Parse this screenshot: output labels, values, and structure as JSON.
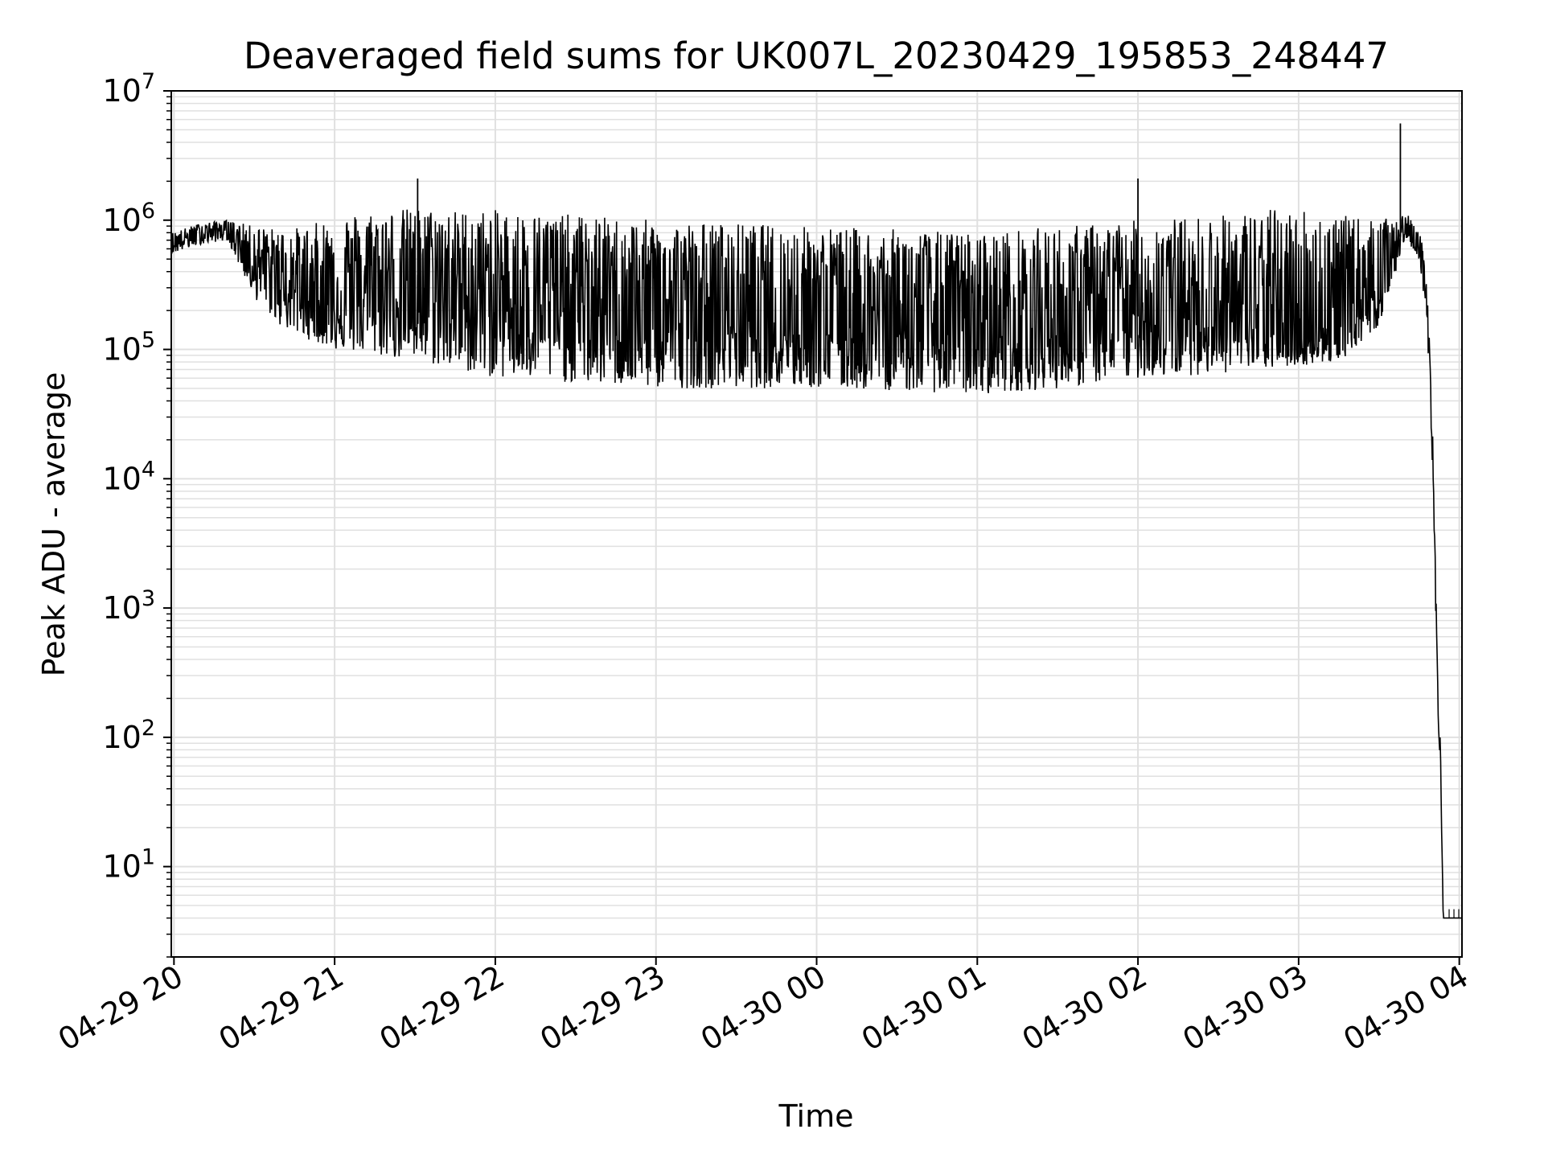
{
  "chart_data": {
    "type": "line",
    "title": "Deaveraged field sums for UK007L_20230429_195853_248447",
    "xlabel": "Time",
    "ylabel": "Peak ADU - average",
    "yscale": "log",
    "ylim": [
      2,
      10000000
    ],
    "xlim": [
      "2023-04-29 19:59",
      "2023-04-30 04:01"
    ],
    "x_ticks": [
      "04-29 20",
      "04-29 21",
      "04-29 22",
      "04-29 23",
      "04-30 00",
      "04-30 01",
      "04-30 02",
      "04-30 03",
      "04-30 04"
    ],
    "y_ticks": [
      {
        "base": "10",
        "exp": "1",
        "value": 10
      },
      {
        "base": "10",
        "exp": "2",
        "value": 100
      },
      {
        "base": "10",
        "exp": "3",
        "value": 1000
      },
      {
        "base": "10",
        "exp": "4",
        "value": 10000
      },
      {
        "base": "10",
        "exp": "5",
        "value": 100000
      },
      {
        "base": "10",
        "exp": "6",
        "value": 1000000
      },
      {
        "base": "10",
        "exp": "7",
        "value": 10000000
      }
    ],
    "grid": true,
    "line_color": "#000000",
    "grid_color": "#e0e0e0",
    "series": [
      {
        "x": [
          "2023-04-29 19:59",
          "2023-04-29 20:10",
          "2023-04-29 20:20",
          "2023-04-29 20:30",
          "2023-04-29 20:40",
          "2023-04-29 20:50",
          "2023-04-29 21:00",
          "2023-04-29 21:15",
          "2023-04-29 21:30",
          "2023-04-29 21:45",
          "2023-04-29 22:00",
          "2023-04-29 22:30",
          "2023-04-29 23:00",
          "2023-04-29 23:30",
          "2023-04-30 00:00",
          "2023-04-30 00:30",
          "2023-04-30 01:00",
          "2023-04-30 01:30",
          "2023-04-30 02:00",
          "2023-04-30 02:30",
          "2023-04-30 02:45",
          "2023-04-30 03:00",
          "2023-04-30 03:15",
          "2023-04-30 03:30",
          "2023-04-30 03:40",
          "2023-04-30 03:45",
          "2023-04-30 03:48",
          "2023-04-30 03:50",
          "2023-04-30 03:52",
          "2023-04-30 03:53",
          "2023-04-30 03:54",
          "2023-04-30 03:55",
          "2023-04-30 04:01"
        ],
        "y": [
          650000,
          800000,
          850000,
          500000,
          350000,
          250000,
          250000,
          280000,
          300000,
          280000,
          250000,
          220000,
          180000,
          170000,
          160000,
          150000,
          140000,
          140000,
          180000,
          200000,
          150000,
          120000,
          150000,
          350000,
          900000,
          600000,
          200000,
          20000,
          200,
          80,
          4,
          4,
          4
        ],
        "y_low": [
          550000,
          650000,
          700000,
          250000,
          150000,
          120000,
          100000,
          90000,
          80000,
          70000,
          60000,
          55000,
          50000,
          50000,
          50000,
          48000,
          45000,
          50000,
          60000,
          65000,
          70000,
          75000,
          80000,
          150000,
          700000,
          500000,
          150000,
          10000,
          150,
          50,
          4,
          4,
          4
        ],
        "y_high": [
          800000,
          950000,
          1000000,
          900000,
          850000,
          900000,
          1100000,
          1200000,
          1250000,
          1200000,
          1200000,
          1100000,
          1000000,
          950000,
          900000,
          850000,
          800000,
          900000,
          1000000,
          1100000,
          1200000,
          1300000,
          1100000,
          1000000,
          1100000,
          1000000,
          300000,
          30000,
          250,
          90,
          4,
          4,
          4
        ],
        "spikes": [
          {
            "x": "2023-04-29 21:31",
            "y": 2100000
          },
          {
            "x": "2023-04-30 02:00",
            "y": 2100000
          },
          {
            "x": "2023-04-30 03:38",
            "y": 5600000
          }
        ]
      }
    ]
  }
}
